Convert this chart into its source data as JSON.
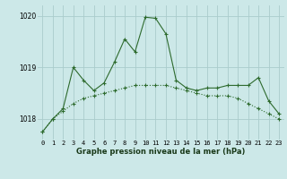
{
  "bg_color": "#cce8e8",
  "grid_color": "#aacccc",
  "line_color": "#2d6a2d",
  "title": "Graphe pression niveau de la mer (hPa)",
  "ylabel_ticks": [
    1018,
    1019,
    1020
  ],
  "xlim": [
    -0.5,
    23.5
  ],
  "ylim": [
    1017.6,
    1020.2
  ],
  "series1_x": [
    0,
    1,
    2,
    3,
    4,
    5,
    6,
    7,
    8,
    9,
    10,
    11,
    12,
    13,
    14,
    15,
    16,
    17,
    18,
    19,
    20,
    21,
    22,
    23
  ],
  "series1_y": [
    1017.75,
    1018.0,
    1018.2,
    1019.0,
    1018.75,
    1018.55,
    1018.7,
    1019.1,
    1019.55,
    1019.3,
    1019.97,
    1019.95,
    1019.65,
    1018.75,
    1018.6,
    1018.55,
    1018.6,
    1018.6,
    1018.65,
    1018.65,
    1018.65,
    1018.8,
    1018.35,
    1018.1
  ],
  "series2_x": [
    0,
    1,
    2,
    3,
    4,
    5,
    6,
    7,
    8,
    9,
    10,
    11,
    12,
    13,
    14,
    15,
    16,
    17,
    18,
    19,
    20,
    21,
    22,
    23
  ],
  "series2_y": [
    1017.75,
    1018.0,
    1018.15,
    1018.3,
    1018.4,
    1018.45,
    1018.5,
    1018.55,
    1018.6,
    1018.65,
    1018.65,
    1018.65,
    1018.65,
    1018.6,
    1018.55,
    1018.5,
    1018.45,
    1018.45,
    1018.45,
    1018.4,
    1018.3,
    1018.2,
    1018.1,
    1018.0
  ],
  "xtick_labels": [
    "0",
    "1",
    "2",
    "3",
    "4",
    "5",
    "6",
    "7",
    "8",
    "9",
    "10",
    "11",
    "12",
    "13",
    "14",
    "15",
    "16",
    "17",
    "18",
    "19",
    "20",
    "21",
    "22",
    "23"
  ],
  "title_fontsize": 6.0,
  "tick_fontsize": 5.0,
  "linewidth": 0.8,
  "markersize": 3.0
}
